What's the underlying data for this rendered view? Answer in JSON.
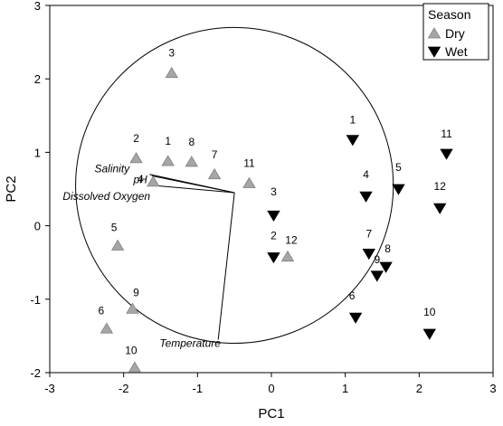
{
  "chart_data": {
    "type": "scatter",
    "title": "",
    "xlabel": "PC1",
    "ylabel": "PC2",
    "xlim": [
      -3,
      3
    ],
    "ylim": [
      -2,
      3
    ],
    "xticks": [
      -3,
      -2,
      -1,
      0,
      1,
      2,
      3
    ],
    "yticks": [
      -2,
      -1,
      0,
      1,
      2,
      3
    ],
    "grid": false,
    "legend": {
      "title": "Season",
      "position": "top-right",
      "entries": [
        {
          "name": "Dry",
          "marker": "triangle-up",
          "color": "#a6a6a6"
        },
        {
          "name": "Wet",
          "marker": "triangle-down",
          "color": "#000000"
        }
      ]
    },
    "correlation_circle": {
      "center": [
        -0.5,
        0.55
      ],
      "radius": 2.15
    },
    "vectors": {
      "origin": [
        -0.5,
        0.45
      ],
      "items": [
        {
          "label": "Salinity",
          "end": [
            -1.65,
            0.7
          ]
        },
        {
          "label": "pH",
          "end": [
            -1.62,
            0.68
          ]
        },
        {
          "label": "Dissolved Oxygen",
          "end": [
            -1.6,
            0.55
          ]
        },
        {
          "label": "Temperature",
          "end": [
            -0.72,
            -1.55
          ]
        }
      ]
    },
    "series": [
      {
        "name": "Dry",
        "points": [
          {
            "label": "3",
            "x": -1.35,
            "y": 2.08
          },
          {
            "label": "2",
            "x": -1.83,
            "y": 0.92
          },
          {
            "label": "1",
            "x": -1.4,
            "y": 0.88
          },
          {
            "label": "8",
            "x": -1.08,
            "y": 0.87
          },
          {
            "label": "7",
            "x": -0.77,
            "y": 0.7
          },
          {
            "label": "4",
            "x": -1.6,
            "y": 0.6
          },
          {
            "label": "11",
            "x": -0.3,
            "y": 0.58
          },
          {
            "label": "5",
            "x": -2.08,
            "y": -0.27
          },
          {
            "label": "12",
            "x": 0.22,
            "y": -0.42
          },
          {
            "label": "9",
            "x": -1.88,
            "y": -1.13
          },
          {
            "label": "6",
            "x": -2.23,
            "y": -1.4
          },
          {
            "label": "10",
            "x": -1.85,
            "y": -1.93
          }
        ]
      },
      {
        "name": "Wet",
        "points": [
          {
            "label": "1",
            "x": 1.1,
            "y": 1.17
          },
          {
            "label": "11",
            "x": 2.37,
            "y": 0.98
          },
          {
            "label": "5",
            "x": 1.72,
            "y": 0.5
          },
          {
            "label": "4",
            "x": 1.28,
            "y": 0.4
          },
          {
            "label": "12",
            "x": 2.28,
            "y": 0.24
          },
          {
            "label": "3",
            "x": 0.03,
            "y": 0.14
          },
          {
            "label": "2",
            "x": 0.03,
            "y": -0.43
          },
          {
            "label": "7",
            "x": 1.32,
            "y": -0.38
          },
          {
            "label": "8",
            "x": 1.55,
            "y": -0.56
          },
          {
            "label": "9",
            "x": 1.43,
            "y": -0.68
          },
          {
            "label": "6",
            "x": 1.14,
            "y": -1.25
          },
          {
            "label": "10",
            "x": 2.14,
            "y": -1.47
          }
        ]
      }
    ]
  }
}
